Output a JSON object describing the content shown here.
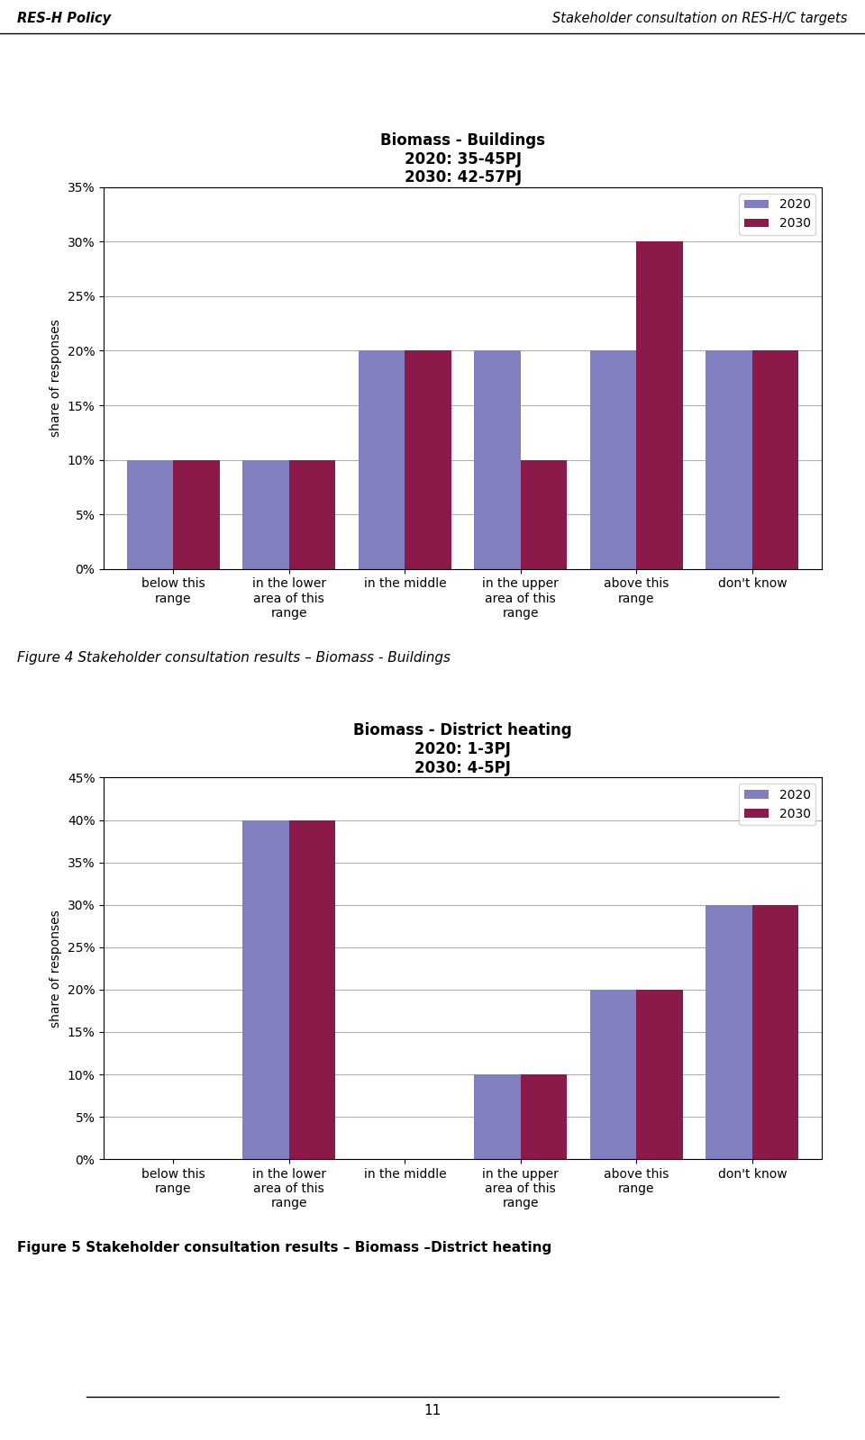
{
  "annotations": [
    "RES-H Policy",
    "Stakeholder consultation on RES-H/C targets",
    "11"
  ],
  "chart_data": [
    {
      "type": "bar",
      "title": "Biomass - Buildings\n2020: 35-45PJ\n2030: 42-57PJ",
      "ylabel": "share of responses",
      "categories": [
        "below this\nrange",
        "in the lower\narea of this\nrange",
        "in the middle",
        "in the upper\narea of this\nrange",
        "above this\nrange",
        "don't know"
      ],
      "series": [
        {
          "name": "2020",
          "color": "#8080C0",
          "values": [
            0.1,
            0.1,
            0.2,
            0.2,
            0.2,
            0.2
          ]
        },
        {
          "name": "2030",
          "color": "#8B1A4A",
          "values": [
            0.1,
            0.1,
            0.2,
            0.1,
            0.3,
            0.2
          ]
        }
      ],
      "ylim": [
        0,
        0.35
      ],
      "yticks": [
        {
          "value": 0.0,
          "label": "0%"
        },
        {
          "value": 0.05,
          "label": "5%"
        },
        {
          "value": 0.1,
          "label": "10%"
        },
        {
          "value": 0.15,
          "label": "15%"
        },
        {
          "value": 0.2,
          "label": "20%"
        },
        {
          "value": 0.25,
          "label": "25%"
        },
        {
          "value": 0.3,
          "label": "30%"
        },
        {
          "value": 0.35,
          "label": "35%"
        }
      ],
      "grid": true,
      "legend": "upper right",
      "annotations": [
        "Figure 4 Stakeholder consultation results – Biomass - Buildings"
      ]
    },
    {
      "type": "bar",
      "title": "Biomass - District heating\n2020: 1-3PJ\n2030: 4-5PJ",
      "ylabel": "share of responses",
      "categories": [
        "below this\nrange",
        "in the lower\narea of this\nrange",
        "in the middle",
        "in the upper\narea of this\nrange",
        "above this\nrange",
        "don't know"
      ],
      "series": [
        {
          "name": "2020",
          "color": "#8080C0",
          "values": [
            0.0,
            0.4,
            0.0,
            0.1,
            0.2,
            0.3
          ]
        },
        {
          "name": "2030",
          "color": "#8B1A4A",
          "values": [
            0.0,
            0.4,
            0.0,
            0.1,
            0.2,
            0.3
          ]
        }
      ],
      "ylim": [
        0,
        0.45
      ],
      "yticks": [
        {
          "value": 0.0,
          "label": "0%"
        },
        {
          "value": 0.05,
          "label": "5%"
        },
        {
          "value": 0.1,
          "label": "10%"
        },
        {
          "value": 0.15,
          "label": "15%"
        },
        {
          "value": 0.2,
          "label": "20%"
        },
        {
          "value": 0.25,
          "label": "25%"
        },
        {
          "value": 0.3,
          "label": "30%"
        },
        {
          "value": 0.35,
          "label": "35%"
        },
        {
          "value": 0.4,
          "label": "40%"
        },
        {
          "value": 0.45,
          "label": "45%"
        }
      ],
      "grid": true,
      "legend": "upper right",
      "annotations": [
        "Figure 5 Stakeholder consultation results – Biomass –District heating"
      ]
    }
  ]
}
